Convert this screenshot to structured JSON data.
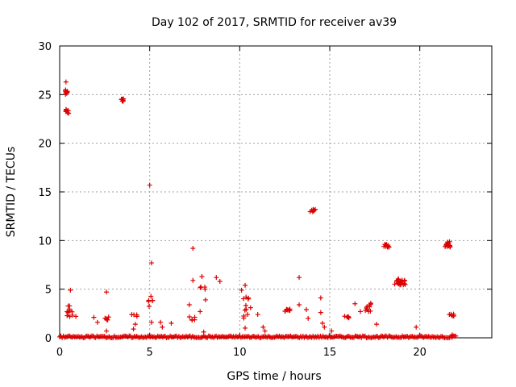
{
  "chart_data": {
    "type": "scatter",
    "title": "Day 102 of 2017, SRMTID for receiver av39",
    "xlabel": "GPS time / hours",
    "ylabel": "SRMTID / TECUs",
    "xlim": [
      0,
      24
    ],
    "ylim": [
      0,
      30
    ],
    "xticks": [
      0,
      5,
      10,
      15,
      20
    ],
    "yticks": [
      0,
      5,
      10,
      15,
      20,
      25,
      30
    ],
    "grid": true,
    "marker": "+",
    "color": "#dd0000",
    "clusters": [
      {
        "x": [
          0.3,
          0.5
        ],
        "y": [
          23.0,
          23.5
        ],
        "n": 8
      },
      {
        "x": [
          0.3,
          0.45
        ],
        "y": [
          25.0,
          25.5
        ],
        "n": 10
      },
      {
        "x": [
          3.4,
          3.55
        ],
        "y": [
          24.3,
          24.6
        ],
        "n": 8
      },
      {
        "x": [
          0.3,
          0.8
        ],
        "y": [
          1.6,
          3.4
        ],
        "n": 10
      },
      {
        "x": [
          2.5,
          2.8
        ],
        "y": [
          1.8,
          2.3
        ],
        "n": 5
      },
      {
        "x": [
          4.0,
          4.3
        ],
        "y": [
          2.2,
          2.4
        ],
        "n": 4
      },
      {
        "x": [
          4.9,
          5.2
        ],
        "y": [
          3.2,
          4.5
        ],
        "n": 6
      },
      {
        "x": [
          7.2,
          7.5
        ],
        "y": [
          1.8,
          2.2
        ],
        "n": 5
      },
      {
        "x": [
          7.8,
          8.1
        ],
        "y": [
          4.9,
          5.3
        ],
        "n": 4
      },
      {
        "x": [
          10.2,
          10.5
        ],
        "y": [
          2.0,
          4.2
        ],
        "n": 10
      },
      {
        "x": [
          12.5,
          12.8
        ],
        "y": [
          2.7,
          3.0
        ],
        "n": 8
      },
      {
        "x": [
          13.9,
          14.2
        ],
        "y": [
          12.9,
          13.2
        ],
        "n": 8
      },
      {
        "x": [
          15.8,
          16.1
        ],
        "y": [
          2.0,
          2.3
        ],
        "n": 6
      },
      {
        "x": [
          16.9,
          17.3
        ],
        "y": [
          2.6,
          3.8
        ],
        "n": 10
      },
      {
        "x": [
          18.0,
          18.3
        ],
        "y": [
          9.2,
          9.6
        ],
        "n": 10
      },
      {
        "x": [
          18.6,
          19.2
        ],
        "y": [
          5.4,
          6.1
        ],
        "n": 22
      },
      {
        "x": [
          21.4,
          21.7
        ],
        "y": [
          9.3,
          10.0
        ],
        "n": 14
      },
      {
        "x": [
          21.6,
          21.9
        ],
        "y": [
          2.2,
          2.6
        ],
        "n": 6
      }
    ],
    "points": [
      [
        0.05,
        0.2
      ],
      [
        0.35,
        26.3
      ],
      [
        0.6,
        4.9
      ],
      [
        0.9,
        2.2
      ],
      [
        1.9,
        2.1
      ],
      [
        2.1,
        1.6
      ],
      [
        2.6,
        4.7
      ],
      [
        2.6,
        0.7
      ],
      [
        4.1,
        0.9
      ],
      [
        4.2,
        1.4
      ],
      [
        5.0,
        15.7
      ],
      [
        5.1,
        7.7
      ],
      [
        5.1,
        1.6
      ],
      [
        5.6,
        1.6
      ],
      [
        5.7,
        1.1
      ],
      [
        6.2,
        1.5
      ],
      [
        7.2,
        3.4
      ],
      [
        7.4,
        9.2
      ],
      [
        7.4,
        5.9
      ],
      [
        7.8,
        2.7
      ],
      [
        7.9,
        6.3
      ],
      [
        8.1,
        3.9
      ],
      [
        8.0,
        0.6
      ],
      [
        8.7,
        6.2
      ],
      [
        8.9,
        5.8
      ],
      [
        10.1,
        4.9
      ],
      [
        10.3,
        5.4
      ],
      [
        10.3,
        1.0
      ],
      [
        10.6,
        3.1
      ],
      [
        11.0,
        2.4
      ],
      [
        11.3,
        1.1
      ],
      [
        11.4,
        0.7
      ],
      [
        13.3,
        6.2
      ],
      [
        13.3,
        3.4
      ],
      [
        13.7,
        2.9
      ],
      [
        13.8,
        2.0
      ],
      [
        14.5,
        4.1
      ],
      [
        14.5,
        2.6
      ],
      [
        14.6,
        1.5
      ],
      [
        14.7,
        1.1
      ],
      [
        15.1,
        0.7
      ],
      [
        16.4,
        3.5
      ],
      [
        16.7,
        2.7
      ],
      [
        17.6,
        1.4
      ],
      [
        19.8,
        1.1
      ],
      [
        21.8,
        0.3
      ]
    ],
    "baseline": {
      "x_range": [
        0,
        22
      ],
      "y_range": [
        0,
        0.2
      ],
      "n": 320
    }
  }
}
